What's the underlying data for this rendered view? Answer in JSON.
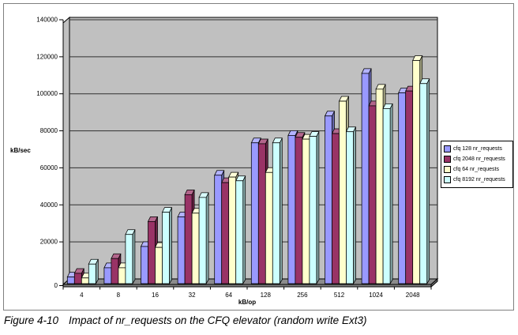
{
  "figure": {
    "caption_label": "Figure 4-10",
    "caption_text": "Impact of nr_requests on the CFQ elevator (random write Ext3)"
  },
  "chart_data": {
    "type": "bar",
    "style": "3d-clustered-column",
    "title": "",
    "xlabel": "kB/op",
    "ylabel": "kB/sec",
    "ylim": [
      0,
      140000
    ],
    "ytick_step": 20000,
    "ytick_labels": [
      "0",
      "20000",
      "40000",
      "60000",
      "80000",
      "100000",
      "120000",
      "140000"
    ],
    "grid": true,
    "legend_position": "right",
    "wall_color": "#C0C0C0",
    "floor_color": "#808080",
    "categories": [
      "4",
      "8",
      "16",
      "32",
      "64",
      "128",
      "256",
      "512",
      "1024",
      "2048"
    ],
    "series": [
      {
        "name": "cfq 128 nr_requests",
        "color": "#9999FF",
        "values": [
          4000,
          9000,
          20500,
          36500,
          59000,
          76500,
          80500,
          91000,
          114000,
          103500
        ]
      },
      {
        "name": "cfq 2048 nr_requests",
        "color": "#993366",
        "values": [
          6000,
          14000,
          34000,
          48500,
          55000,
          76000,
          79500,
          81500,
          96500,
          104500
        ]
      },
      {
        "name": "cfq 64 nr_requests",
        "color": "#FFFFCC",
        "values": [
          3500,
          9000,
          20000,
          38500,
          58000,
          60500,
          78500,
          99000,
          105500,
          121000
        ]
      },
      {
        "name": "cfq 8192 nr_requests",
        "color": "#CCFFFF",
        "values": [
          11000,
          27000,
          39000,
          47000,
          56000,
          76500,
          80000,
          82500,
          95000,
          108500
        ]
      }
    ]
  }
}
